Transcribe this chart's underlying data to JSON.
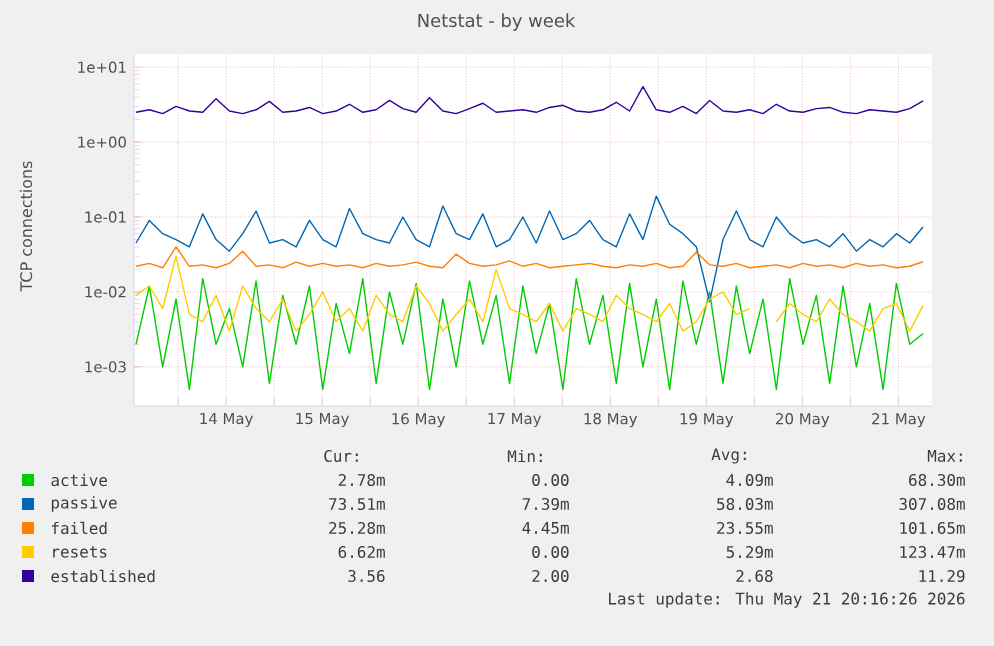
{
  "chart_data": {
    "type": "line",
    "title": "Netstat - by week",
    "ylabel": "TCP connections",
    "log": "y",
    "grid": true,
    "legend": "bottom",
    "marker": "none",
    "line_style": "solid",
    "xlim": [
      "2026-05-13T13:00",
      "2026-05-21T20:24"
    ],
    "xticks": [
      {
        "value": "2026-05-14T00:00",
        "label": null
      },
      {
        "value": "2026-05-14T12:00",
        "label": "14 May"
      },
      {
        "value": "2026-05-15T00:00",
        "label": null
      },
      {
        "value": "2026-05-15T12:00",
        "label": "15 May"
      },
      {
        "value": "2026-05-16T00:00",
        "label": null
      },
      {
        "value": "2026-05-16T12:00",
        "label": "16 May"
      },
      {
        "value": "2026-05-17T00:00",
        "label": null
      },
      {
        "value": "2026-05-17T12:00",
        "label": "17 May"
      },
      {
        "value": "2026-05-18T00:00",
        "label": null
      },
      {
        "value": "2026-05-18T12:00",
        "label": "18 May"
      },
      {
        "value": "2026-05-19T00:00",
        "label": null
      },
      {
        "value": "2026-05-19T12:00",
        "label": "19 May"
      },
      {
        "value": "2026-05-20T00:00",
        "label": null
      },
      {
        "value": "2026-05-20T12:00",
        "label": "20 May"
      },
      {
        "value": "2026-05-21T00:00",
        "label": null
      },
      {
        "value": "2026-05-21T12:00",
        "label": "21 May"
      }
    ],
    "ylim": [
      0.0003,
      15
    ],
    "yticks": [
      {
        "value": 0.001,
        "label": "1e-03"
      },
      {
        "value": 0.01,
        "label": "1e-02"
      },
      {
        "value": 0.1,
        "label": "1e-01"
      },
      {
        "value": 1,
        "label": "1e+00"
      },
      {
        "value": 10,
        "label": "1e+01"
      }
    ],
    "x": [
      "2026-05-13T13:30",
      "2026-05-13T16:50",
      "2026-05-13T20:10",
      "2026-05-13T23:30",
      "2026-05-14T02:50",
      "2026-05-14T06:10",
      "2026-05-14T09:30",
      "2026-05-14T12:50",
      "2026-05-14T16:10",
      "2026-05-14T19:30",
      "2026-05-14T22:50",
      "2026-05-15T02:10",
      "2026-05-15T05:30",
      "2026-05-15T08:50",
      "2026-05-15T12:10",
      "2026-05-15T15:30",
      "2026-05-15T18:50",
      "2026-05-15T22:10",
      "2026-05-16T01:30",
      "2026-05-16T04:50",
      "2026-05-16T08:10",
      "2026-05-16T11:30",
      "2026-05-16T14:50",
      "2026-05-16T18:10",
      "2026-05-16T21:30",
      "2026-05-17T00:50",
      "2026-05-17T04:10",
      "2026-05-17T07:30",
      "2026-05-17T10:50",
      "2026-05-17T14:10",
      "2026-05-17T17:30",
      "2026-05-17T20:50",
      "2026-05-18T00:10",
      "2026-05-18T03:30",
      "2026-05-18T06:50",
      "2026-05-18T10:10",
      "2026-05-18T13:30",
      "2026-05-18T16:50",
      "2026-05-18T20:10",
      "2026-05-18T23:30",
      "2026-05-19T02:50",
      "2026-05-19T06:10",
      "2026-05-19T09:30",
      "2026-05-19T12:50",
      "2026-05-19T16:10",
      "2026-05-19T19:30",
      "2026-05-19T22:50",
      "2026-05-20T02:10",
      "2026-05-20T05:30",
      "2026-05-20T08:50",
      "2026-05-20T12:10",
      "2026-05-20T15:30",
      "2026-05-20T18:50",
      "2026-05-20T22:10",
      "2026-05-21T01:30",
      "2026-05-21T04:50",
      "2026-05-21T08:10",
      "2026-05-21T11:30",
      "2026-05-21T14:50",
      "2026-05-21T18:10"
    ],
    "series": [
      {
        "name": "active",
        "color": "#00cc00",
        "values": [
          0.002,
          0.012,
          0.001,
          0.008,
          0.0005,
          0.015,
          0.002,
          0.006,
          0.001,
          0.014,
          0.0006,
          0.009,
          0.002,
          0.012,
          0.0005,
          0.007,
          0.0015,
          0.015,
          0.0006,
          0.01,
          0.002,
          0.013,
          0.0005,
          0.008,
          0.001,
          0.014,
          0.002,
          0.009,
          0.0006,
          0.012,
          0.0015,
          0.007,
          0.0005,
          0.015,
          0.002,
          0.009,
          0.0006,
          0.013,
          0.001,
          0.008,
          0.0005,
          0.014,
          0.002,
          0.01,
          0.0006,
          0.012,
          0.0015,
          0.008,
          0.0005,
          0.015,
          0.002,
          0.009,
          0.0006,
          0.012,
          0.001,
          0.007,
          0.0005,
          0.013,
          0.002,
          0.00278
        ]
      },
      {
        "name": "passive",
        "color": "#0066b3",
        "values": [
          0.045,
          0.09,
          0.06,
          0.05,
          0.04,
          0.11,
          0.05,
          0.035,
          0.06,
          0.12,
          0.045,
          0.05,
          0.04,
          0.09,
          0.05,
          0.04,
          0.13,
          0.06,
          0.05,
          0.045,
          0.1,
          0.05,
          0.04,
          0.14,
          0.06,
          0.05,
          0.11,
          0.04,
          0.05,
          0.1,
          0.045,
          0.12,
          0.05,
          0.06,
          0.09,
          0.05,
          0.04,
          0.11,
          0.05,
          0.19,
          0.08,
          0.06,
          0.04,
          0.0074,
          0.05,
          0.12,
          0.05,
          0.04,
          0.1,
          0.06,
          0.045,
          0.05,
          0.04,
          0.06,
          0.035,
          0.05,
          0.04,
          0.06,
          0.045,
          0.0735
        ]
      },
      {
        "name": "failed",
        "color": "#ff8000",
        "values": [
          0.022,
          0.024,
          0.021,
          0.04,
          0.022,
          0.023,
          0.021,
          0.024,
          0.035,
          0.022,
          0.023,
          0.021,
          0.025,
          0.022,
          0.024,
          0.022,
          0.023,
          0.021,
          0.024,
          0.022,
          0.023,
          0.025,
          0.022,
          0.021,
          0.032,
          0.024,
          0.022,
          0.023,
          0.026,
          0.022,
          0.024,
          0.021,
          0.022,
          0.023,
          0.024,
          0.022,
          0.021,
          0.023,
          0.022,
          0.024,
          0.021,
          0.022,
          0.034,
          0.023,
          0.022,
          0.024,
          0.021,
          0.022,
          0.023,
          0.021,
          0.024,
          0.022,
          0.023,
          0.021,
          0.024,
          0.022,
          0.023,
          0.021,
          0.022,
          0.0253
        ]
      },
      {
        "name": "resets",
        "color": "#ffcc00",
        "values": [
          0.009,
          0.012,
          0.006,
          0.03,
          0.005,
          0.004,
          0.009,
          0.003,
          0.012,
          0.006,
          0.004,
          0.008,
          0.003,
          0.005,
          0.01,
          0.004,
          0.006,
          0.003,
          0.009,
          0.005,
          0.004,
          0.012,
          0.007,
          0.003,
          0.005,
          0.008,
          0.004,
          0.02,
          0.006,
          0.005,
          0.004,
          0.007,
          0.003,
          0.006,
          0.005,
          0.004,
          0.009,
          0.006,
          0.005,
          0.004,
          0.007,
          0.003,
          0.004,
          0.008,
          0.01,
          0.005,
          0.006,
          null,
          0.004,
          0.007,
          0.005,
          0.004,
          0.008,
          0.005,
          0.004,
          0.003,
          0.006,
          0.007,
          0.003,
          0.0066
        ]
      },
      {
        "name": "established",
        "color": "#330099",
        "values": [
          2.5,
          2.7,
          2.4,
          3.0,
          2.6,
          2.5,
          3.8,
          2.6,
          2.4,
          2.7,
          3.5,
          2.5,
          2.6,
          2.9,
          2.4,
          2.6,
          3.2,
          2.5,
          2.7,
          3.6,
          2.8,
          2.5,
          3.9,
          2.6,
          2.4,
          2.8,
          3.3,
          2.5,
          2.6,
          2.7,
          2.5,
          2.9,
          3.1,
          2.6,
          2.5,
          2.7,
          3.4,
          2.6,
          5.5,
          2.7,
          2.5,
          3.0,
          2.4,
          3.6,
          2.6,
          2.5,
          2.7,
          2.4,
          3.2,
          2.6,
          2.5,
          2.8,
          2.9,
          2.5,
          2.4,
          2.7,
          2.6,
          2.5,
          2.8,
          3.56
        ]
      }
    ],
    "annotations": [
      "Cur:",
      "Min:",
      "Avg:",
      "Max:",
      "2.78m",
      "0.00",
      "4.09m",
      "68.30m",
      "73.51m",
      "7.39m",
      "58.03m",
      "307.08m",
      "25.28m",
      "4.45m",
      "23.55m",
      "101.65m",
      "6.62m",
      "0.00",
      "5.29m",
      "123.47m",
      "3.56",
      "2.00",
      "2.68",
      "11.29",
      "Last update: Thu May 21 20:16:26 2026"
    ]
  }
}
